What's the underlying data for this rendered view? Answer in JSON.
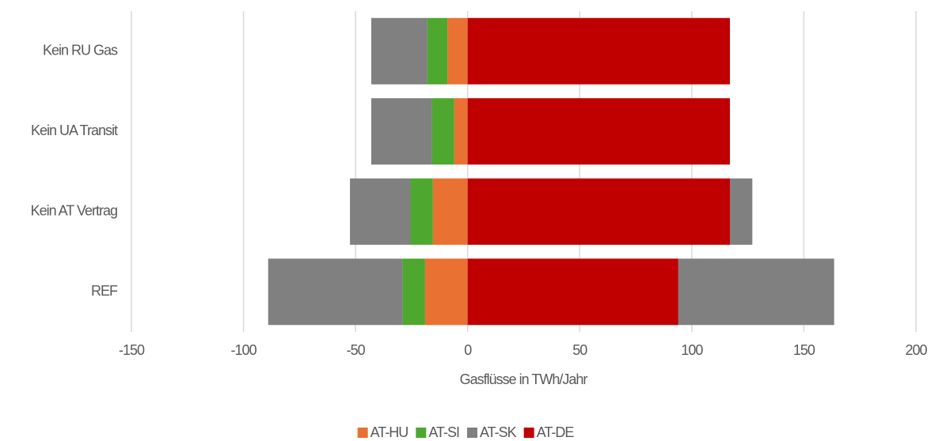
{
  "chart_data": {
    "type": "bar",
    "orientation": "horizontal",
    "stacked": true,
    "x_label": "Gasflüsse in TWh/Jahr",
    "categories": [
      "Kein RU Gas",
      "Kein UA Transit",
      "Kein AT Vertrag",
      "REF"
    ],
    "series": [
      {
        "name": "AT-HU",
        "color": "#e97132",
        "values": [
          -9,
          -6,
          -15.5,
          -19
        ]
      },
      {
        "name": "AT-SI",
        "color": "#4ea72e",
        "values": [
          -9,
          -10,
          -10,
          -10
        ]
      },
      {
        "name": "AT-SK",
        "color": "#808080",
        "values": [
          -25,
          -27,
          -27,
          -60
        ]
      },
      {
        "name": "AT-DE",
        "color": "#c00000",
        "values": [
          117,
          117,
          117,
          94
        ]
      },
      {
        "name": "AT-SK",
        "color": "#808080",
        "values": [
          0,
          0,
          10,
          69.5
        ]
      }
    ],
    "xlim": [
      -150,
      200
    ],
    "xticks": [
      -150,
      -100,
      -50,
      0,
      50,
      100,
      150,
      200
    ],
    "grid": true,
    "legend": "bottom"
  }
}
